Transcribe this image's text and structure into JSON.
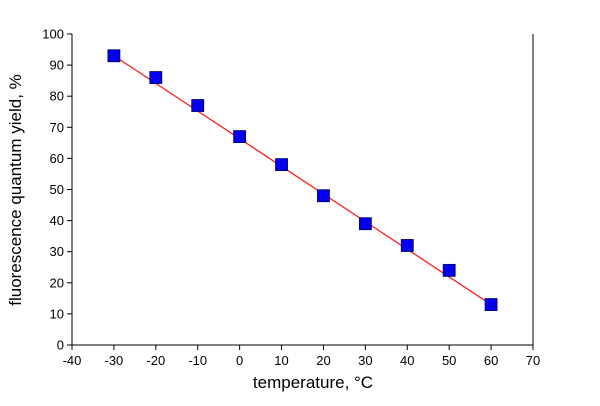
{
  "chart_data": {
    "type": "scatter",
    "title": "",
    "xlabel": "temperature, °C",
    "ylabel": "fluorescence quantum yield, %",
    "xlim": [
      -40,
      70
    ],
    "ylim": [
      0,
      100
    ],
    "xticks": [
      -40,
      -30,
      -20,
      -10,
      0,
      10,
      20,
      30,
      40,
      50,
      60,
      70
    ],
    "yticks": [
      0,
      10,
      20,
      30,
      40,
      50,
      60,
      70,
      80,
      90,
      100
    ],
    "grid": false,
    "legend": "none",
    "series": [
      {
        "x": [
          -30,
          -20,
          -10,
          0,
          10,
          20,
          30,
          40,
          50,
          60
        ],
        "y": [
          93,
          86,
          77,
          67,
          58,
          48,
          39,
          32,
          24,
          13
        ],
        "marker": "square",
        "color": "#0000ee"
      }
    ],
    "fit_line": {
      "type": "linear",
      "x": [
        -30,
        60
      ],
      "y": [
        93,
        13
      ],
      "color": "#ff2020"
    }
  }
}
